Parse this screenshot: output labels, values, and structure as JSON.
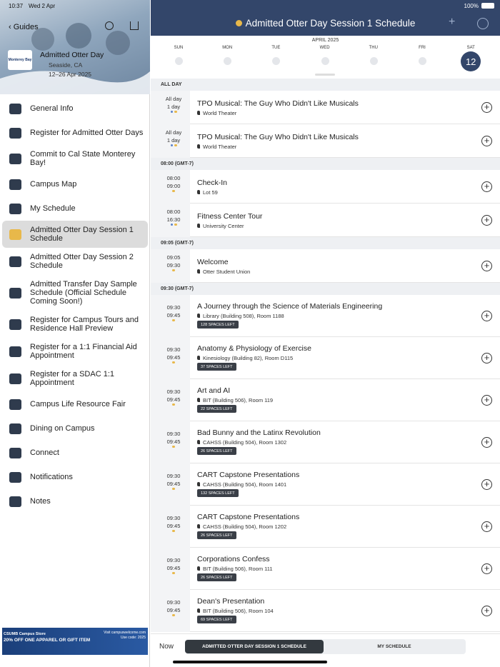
{
  "status_bar": {
    "time": "10:37",
    "date": "Wed 2 Apr",
    "battery": "100%"
  },
  "sidebar": {
    "back": "Guides",
    "logo": "Monterey Bay",
    "event_title": "Admitted Otter Day",
    "location": "Seaside, CA",
    "dates": "12–26 Apr 2025",
    "menu": [
      "General Info",
      "Register for Admitted Otter Days",
      "Commit to Cal State Monterey Bay!",
      "Campus Map",
      "My Schedule",
      "Admitted Otter Day Session 1 Schedule",
      "Admitted Otter Day Session 2 Schedule",
      "Admitted Transfer Day Sample Schedule (Official Schedule Coming Soon!)",
      "Register for Campus Tours and Residence Hall Preview",
      "Register for a 1:1 Financial Aid Appointment",
      "Register for a SDAC 1:1 Appointment",
      "Campus Life Resource Fair",
      "Dining on Campus",
      "Connect",
      "Notifications",
      "Notes"
    ],
    "selected": 5,
    "ad": {
      "store": "CSUMB Campus Store",
      "offer": "20% OFF ONE APPAREL OR GIFT ITEM",
      "site": "Visit campuswelcome.com",
      "code": "Use code: 2025"
    }
  },
  "header": {
    "title": "Admitted Otter Day Session 1 Schedule",
    "dot_color": "#e8b84a"
  },
  "calendar": {
    "month": "APRIL 2025",
    "days": [
      "SUN",
      "MON",
      "TUE",
      "WED",
      "THU",
      "FRI",
      "SAT"
    ],
    "selected_day": "12"
  },
  "schedule": [
    {
      "heading": "ALL DAY",
      "events": [
        {
          "time1": "All day",
          "time2": "1 day",
          "title": "TPO Musical: The Guy Who Didn't Like Musicals",
          "location": "World Theater",
          "dots": [
            "#5b83c9",
            "#e8b84a"
          ]
        },
        {
          "time1": "All day",
          "time2": "1 day",
          "title": "TPO Musical: The Guy Who Didn't Like Musicals",
          "location": "World Theater",
          "dots": [
            "#5b83c9",
            "#e8b84a"
          ]
        }
      ]
    },
    {
      "heading": "08:00 (GMT-7)",
      "events": [
        {
          "time1": "08:00",
          "time2": "09:00",
          "title": "Check-In",
          "location": "Lot 59",
          "dots": [
            "#e8b84a"
          ]
        },
        {
          "time1": "08:00",
          "time2": "16:30",
          "title": "Fitness Center Tour",
          "location": "University Center",
          "dots": [
            "#5b83c9",
            "#e8b84a"
          ]
        }
      ]
    },
    {
      "heading": "09:05 (GMT-7)",
      "events": [
        {
          "time1": "09:05",
          "time2": "09:30",
          "title": "Welcome",
          "location": "Otter Student Union",
          "dots": [
            "#e8b84a"
          ]
        }
      ]
    },
    {
      "heading": "09:30 (GMT-7)",
      "events": [
        {
          "time1": "09:30",
          "time2": "09:45",
          "title": "A Journey through the Science of Materials Engineering",
          "location": "Library (Building 508), Room 1188",
          "spaces": "128 SPACES LEFT",
          "dots": [
            "#e8b84a"
          ]
        },
        {
          "time1": "09:30",
          "time2": "09:45",
          "title": "Anatomy & Physiology of Exercise",
          "location": "Kinesiology (Building  82), Room D115",
          "spaces": "37 SPACES LEFT",
          "dots": [
            "#e8b84a"
          ]
        },
        {
          "time1": "09:30",
          "time2": "09:45",
          "title": "Art and AI",
          "location": "BIT (Building 506), Room 119",
          "spaces": "22 SPACES LEFT",
          "dots": [
            "#e8b84a"
          ]
        },
        {
          "time1": "09:30",
          "time2": "09:45",
          "title": "Bad Bunny and the Latinx Revolution",
          "location": "CAHSS (Building 504), Room 1302",
          "spaces": "26 SPACES LEFT",
          "dots": [
            "#e8b84a"
          ]
        },
        {
          "time1": "09:30",
          "time2": "09:45",
          "title": "CART Capstone Presentations",
          "location": "CAHSS (Building 504), Room 1401",
          "spaces": "132 SPACES LEFT",
          "dots": [
            "#e8b84a"
          ]
        },
        {
          "time1": "09:30",
          "time2": "09:45",
          "title": "CART Capstone Presentations",
          "location": "CAHSS (Building 504), Room 1202",
          "spaces": "26 SPACES LEFT",
          "dots": [
            "#e8b84a"
          ]
        },
        {
          "time1": "09:30",
          "time2": "09:45",
          "title": "Corporations Confess",
          "location": "BIT (Building 506), Room 111",
          "spaces": "26 SPACES LEFT",
          "dots": [
            "#e8b84a"
          ]
        },
        {
          "time1": "09:30",
          "time2": "09:45",
          "title": "Dean's Presentation",
          "location": "BIT (Building 506), Room 104",
          "spaces": "69 SPACES LEFT",
          "dots": [
            "#e8b84a"
          ]
        }
      ]
    }
  ],
  "footer": {
    "now": "Now",
    "tabs": [
      "ADMITTED OTTER DAY SESSION 1 SCHEDULE",
      "MY SCHEDULE"
    ],
    "active_tab": 0
  }
}
